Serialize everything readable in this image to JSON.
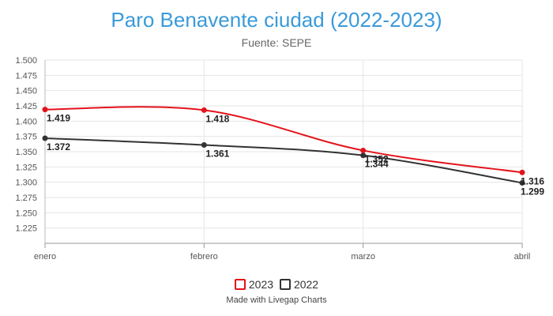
{
  "chart_data": {
    "type": "line",
    "title": "Paro Benavente ciudad (2022-2023)",
    "subtitle": "Fuente: SEPE",
    "categories": [
      "enero",
      "febrero",
      "marzo",
      "abril"
    ],
    "y_ticks": [
      "1.500",
      "1.475",
      "1.450",
      "1.425",
      "1.400",
      "1.375",
      "1.350",
      "1.325",
      "1.300",
      "1.275",
      "1.250",
      "1.225"
    ],
    "ylim": [
      1200,
      1500
    ],
    "series": [
      {
        "name": "2023",
        "color": "#e3131b",
        "values": [
          1419,
          1418,
          1352,
          1316
        ],
        "labels": [
          "1.419",
          "1.418",
          "1.352",
          "1.316"
        ]
      },
      {
        "name": "2022",
        "color": "#333333",
        "values": [
          1372,
          1361,
          1344,
          1299
        ],
        "labels": [
          "1.372",
          "1.361",
          "1.344",
          "1.299"
        ]
      }
    ],
    "grid": true,
    "legend_position": "bottom",
    "credit": "Made with Livegap Charts"
  }
}
